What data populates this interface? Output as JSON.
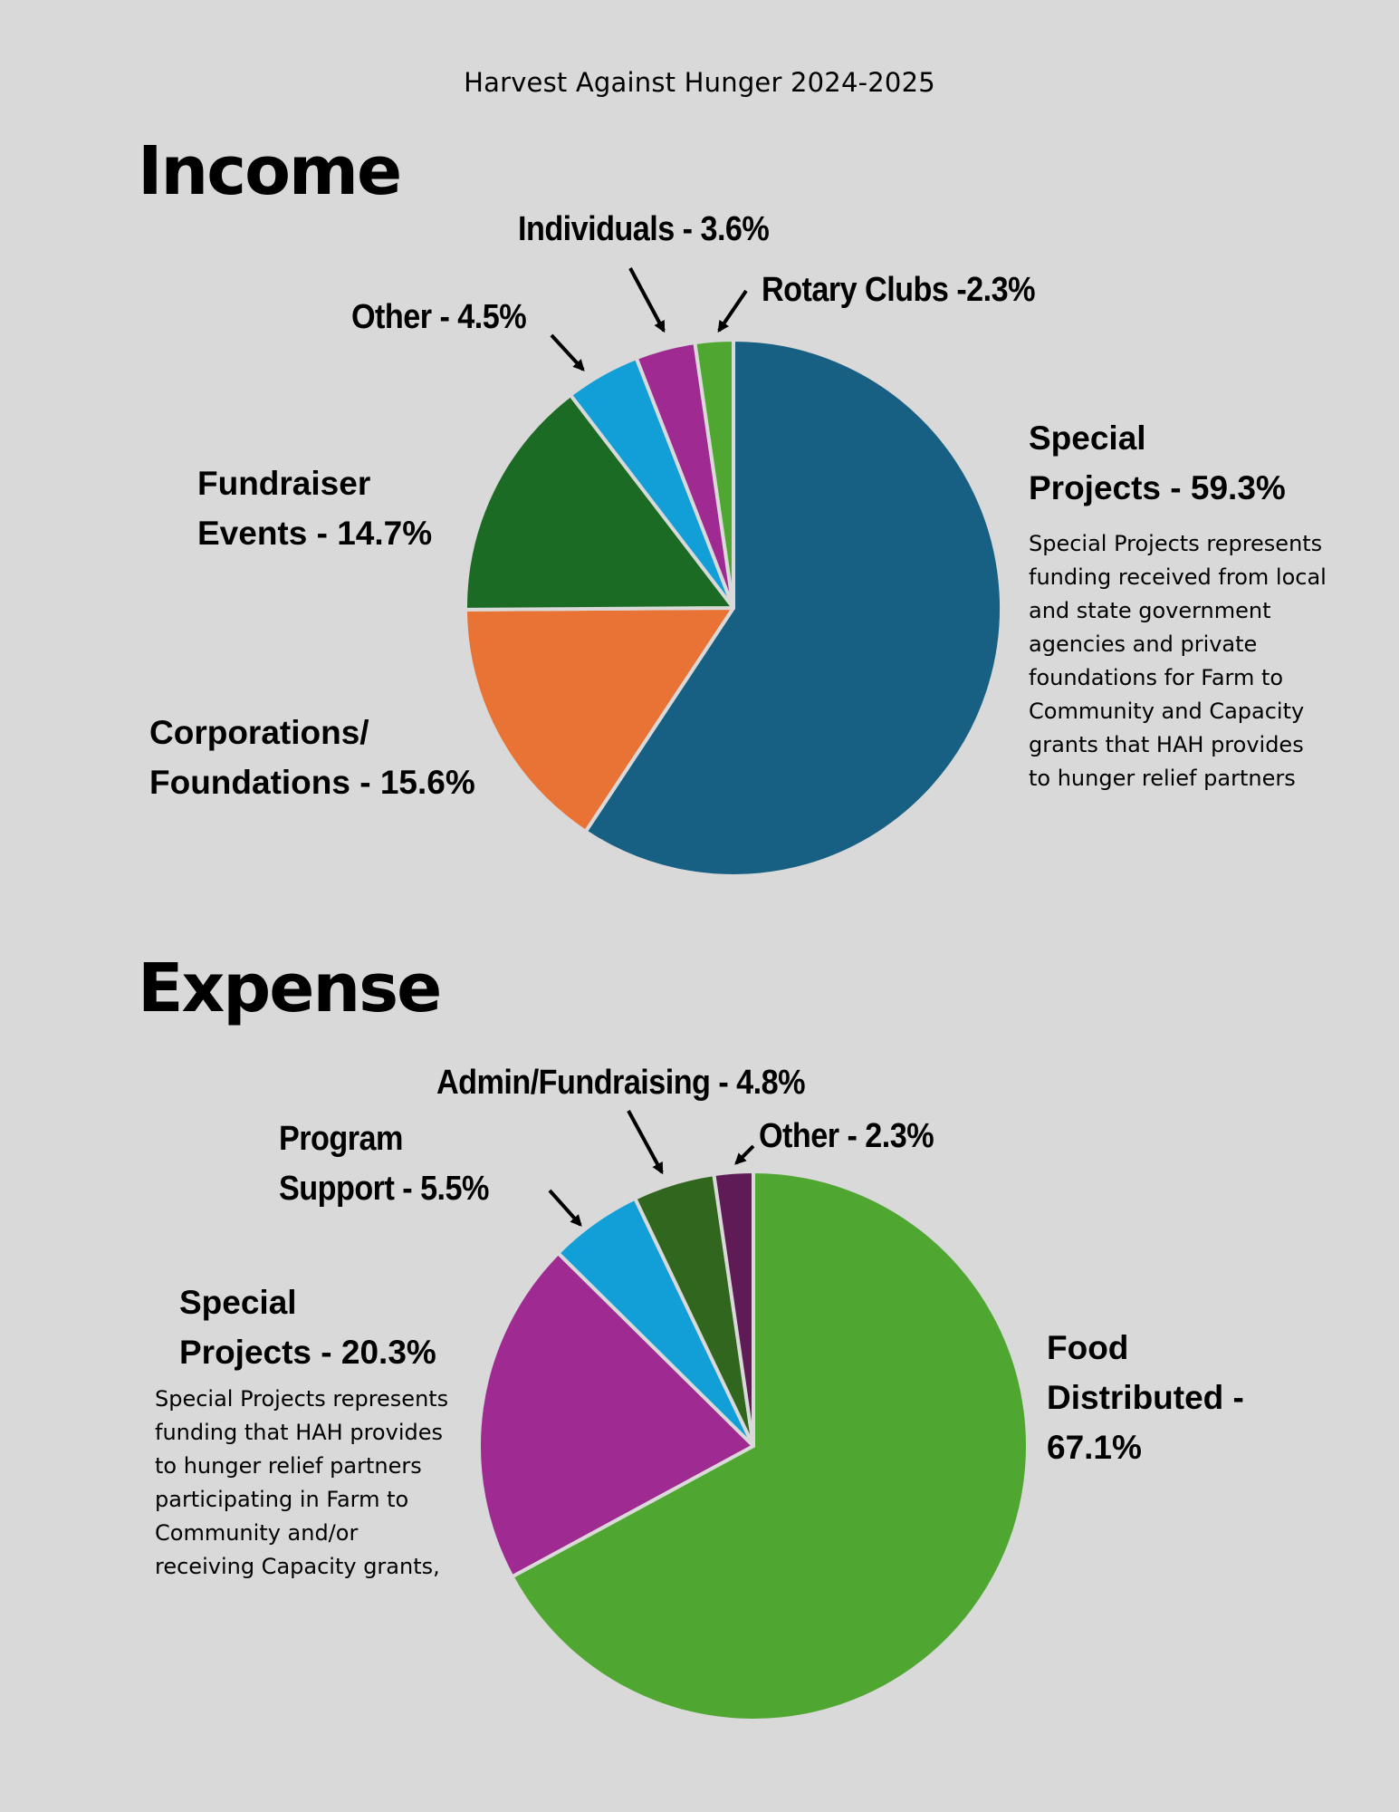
{
  "header": {
    "title": "Harvest Against Hunger  2024-2025"
  },
  "sections": {
    "income": {
      "heading": "Income",
      "labels": {
        "special_projects_line1": "Special",
        "special_projects_line2": "Projects - 59.3%",
        "corporations_line1": "Corporations/",
        "corporations_line2": "Foundations - 15.6%",
        "fundraiser_line1": "Fundraiser",
        "fundraiser_line2": "Events - 14.7%",
        "other": "Other - 4.5%",
        "individuals": "Individuals - 3.6%",
        "rotary": "Rotary Clubs -2.3%"
      },
      "note_lines": [
        "Special Projects represents",
        "funding received from local",
        "and state government",
        "agencies and private",
        "foundations for Farm to",
        "Community and Capacity",
        "grants that HAH provides",
        "to hunger relief partners"
      ]
    },
    "expense": {
      "heading": "Expense",
      "labels": {
        "food_line1": "Food",
        "food_line2": "Distributed -",
        "food_line3": "67.1%",
        "special_projects_line1": "Special",
        "special_projects_line2": "Projects - 20.3%",
        "program_support_line1": "Program",
        "program_support_line2": "Support - 5.5%",
        "admin": "Admin/Fundraising - 4.8%",
        "other": "Other - 2.3%"
      },
      "note_lines": [
        "Special Projects represents",
        "funding that HAH provides",
        "to hunger relief partners",
        "participating in Farm to",
        "Community and/or",
        "receiving Capacity grants,"
      ]
    }
  },
  "colors": {
    "background": "#d9d9d9",
    "slice_border": "#d9d9d9"
  },
  "chart_data": [
    {
      "type": "pie",
      "title": "Income",
      "start": "12 o'clock",
      "direction": "clockwise",
      "slices": [
        {
          "name": "Special Projects",
          "value": 59.3,
          "color": "#176083"
        },
        {
          "name": "Corporations/Foundations",
          "value": 15.6,
          "color": "#e97334"
        },
        {
          "name": "Fundraiser Events",
          "value": 14.7,
          "color": "#1b6b24"
        },
        {
          "name": "Other",
          "value": 4.5,
          "color": "#129fd8"
        },
        {
          "name": "Individuals",
          "value": 3.6,
          "color": "#9f2a91"
        },
        {
          "name": "Rotary Clubs",
          "value": 2.3,
          "color": "#4fa732"
        }
      ],
      "unit": "%"
    },
    {
      "type": "pie",
      "title": "Expense",
      "start": "12 o'clock",
      "direction": "clockwise",
      "slices": [
        {
          "name": "Food Distributed",
          "value": 67.1,
          "color": "#4fa732"
        },
        {
          "name": "Special Projects",
          "value": 20.3,
          "color": "#9f2a91"
        },
        {
          "name": "Program Support",
          "value": 5.5,
          "color": "#129fd8"
        },
        {
          "name": "Admin/Fundraising",
          "value": 4.8,
          "color": "#30661e"
        },
        {
          "name": "Other",
          "value": 2.3,
          "color": "#5f1b56"
        }
      ],
      "unit": "%"
    }
  ]
}
